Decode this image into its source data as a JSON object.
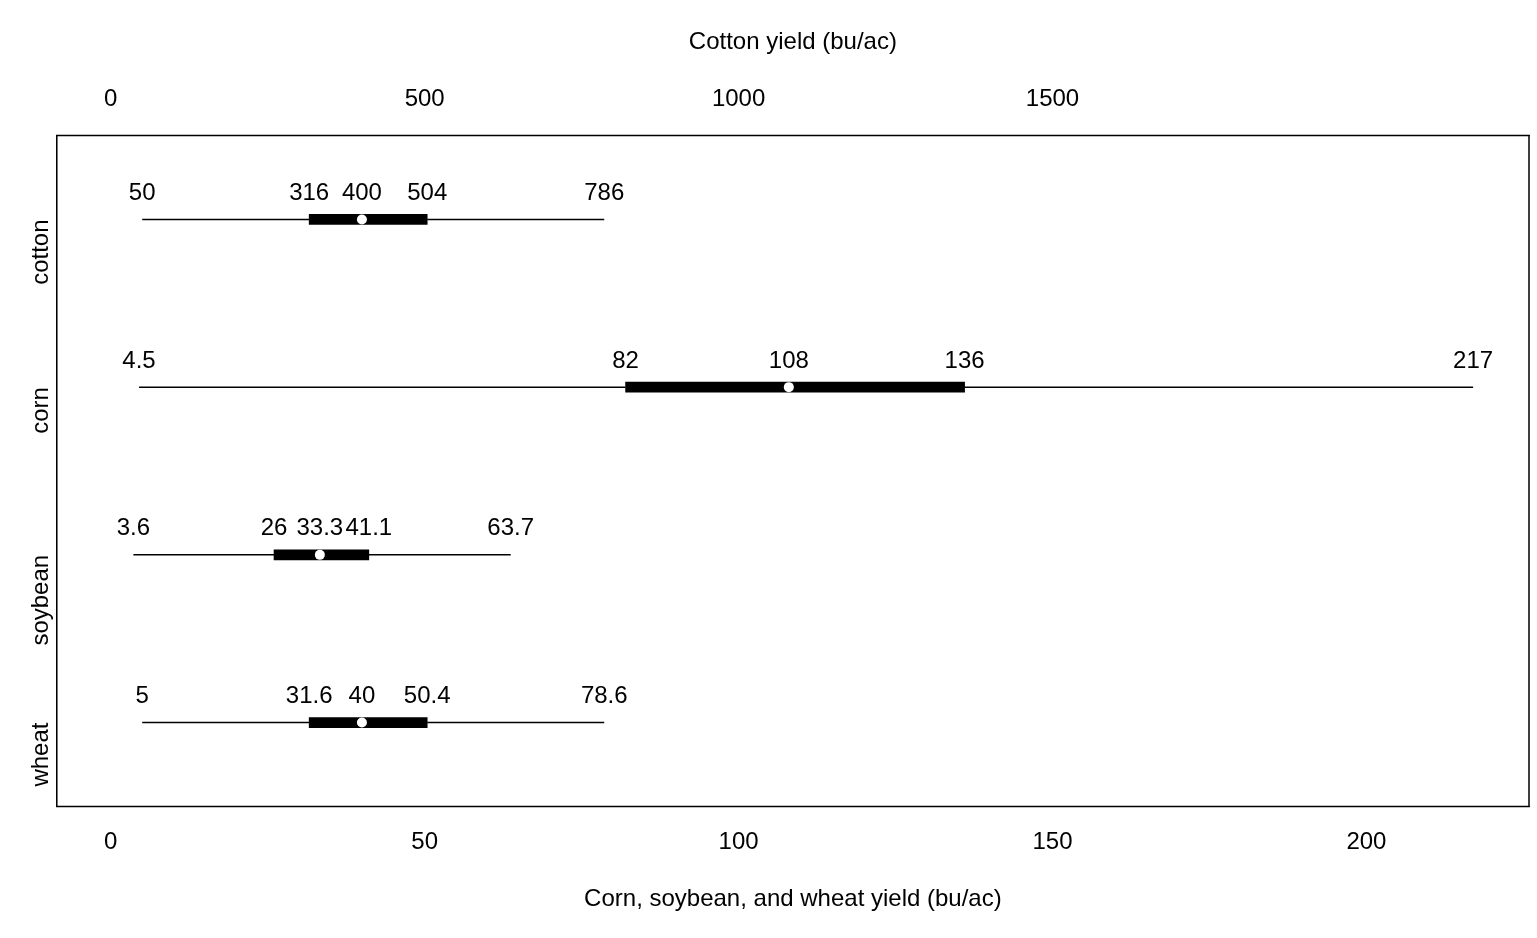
{
  "chart_data": {
    "type": "box",
    "orientation": "horizontal",
    "xlabel": "Corn, soybean, and wheat yield (bu/ac)",
    "x2label": "Cotton yield (bu/ac)",
    "categories": [
      "cotton",
      "corn",
      "soybean",
      "wheat"
    ],
    "xlim": [
      -8.6,
      225.9
    ],
    "xticks": [
      0,
      50,
      100,
      150,
      200
    ],
    "x2lim": [
      -86,
      2259
    ],
    "x2ticks": [
      0,
      500,
      1000,
      1500
    ],
    "grid": false,
    "legend": false,
    "series": [
      {
        "color": "#000000",
        "boxes": [
          null,
          {
            "low": 4.5,
            "q1": 82,
            "median": 108,
            "q3": 136,
            "high": 217
          },
          {
            "low": 3.6,
            "q1": 26,
            "median": 33.3,
            "q3": 41.1,
            "high": 63.7
          },
          {
            "low": 5,
            "q1": 31.6,
            "median": 40,
            "q3": 50.4,
            "high": 78.6
          }
        ],
        "value_labels": [
          null,
          [
            "4.5",
            "82",
            "108",
            "136",
            "217"
          ],
          [
            "3.6",
            "26",
            "33.3",
            "41.1",
            "63.7"
          ],
          [
            "5",
            "31.6",
            "40",
            "50.4",
            "78.6"
          ]
        ]
      },
      {
        "color": "#000000",
        "axis": "x2",
        "boxes": [
          {
            "low": 50,
            "q1": 316,
            "median": 400,
            "q3": 504,
            "high": 786
          },
          null,
          null,
          null
        ],
        "value_labels": [
          [
            "50",
            "316",
            "400",
            "504",
            "786"
          ],
          null,
          null,
          null
        ]
      }
    ]
  }
}
